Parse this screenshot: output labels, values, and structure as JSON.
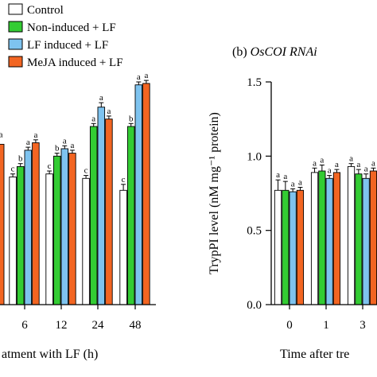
{
  "colors": {
    "control": "#ffffff",
    "non_induced": "#33cc33",
    "lf_induced": "#7ec3ef",
    "meja_induced": "#f26522",
    "axis": "#000000"
  },
  "legend": {
    "placement": "top-left",
    "items": [
      "Control",
      "Non-induced + LF",
      "LF induced + LF",
      "MeJA induced + LF"
    ]
  },
  "chart_data": [
    {
      "type": "bar",
      "panel": "left",
      "categories": [
        "6",
        "12",
        "24",
        "48"
      ],
      "xlabel": "atment with LF (h)",
      "ylim": [
        0,
        1.5
      ],
      "series": [
        {
          "name": "Control",
          "values": [
            0.86,
            0.88,
            0.85,
            0.77
          ],
          "errors": [
            0.02,
            0.02,
            0.02,
            0.04
          ],
          "letters": [
            "c",
            "c",
            "c",
            "c"
          ]
        },
        {
          "name": "Non-induced + LF",
          "values": [
            0.93,
            1.0,
            1.2,
            1.2
          ],
          "errors": [
            0.02,
            0.02,
            0.02,
            0.02
          ],
          "letters": [
            "b",
            "b",
            "a",
            "b"
          ]
        },
        {
          "name": "LF induced + LF",
          "values": [
            1.04,
            1.05,
            1.33,
            1.48
          ],
          "errors": [
            0.02,
            0.02,
            0.03,
            0.02
          ],
          "letters": [
            "a",
            "a",
            "a",
            "a"
          ]
        },
        {
          "name": "MeJA induced + LF",
          "values": [
            1.09,
            1.02,
            1.25,
            1.49
          ],
          "errors": [
            0.02,
            0.02,
            0.02,
            0.02
          ],
          "letters": [
            "a",
            "a",
            "a",
            "a"
          ]
        }
      ],
      "cutoff": {
        "category": "",
        "bar_value": 1.08,
        "letter": "a"
      }
    },
    {
      "type": "bar",
      "panel": "right",
      "title_prefix": "(b) ",
      "title_italic": "OsCOI RNAi",
      "categories": [
        "0",
        "1",
        "3"
      ],
      "xlabel": "Time after tre",
      "ylabel": "TrypPI level (nM mg⁻¹ protein)",
      "ylim": [
        0,
        1.5
      ],
      "yticks": [
        "0.0",
        "0.5",
        "1.0",
        "1.5"
      ],
      "series": [
        {
          "name": "Control",
          "values": [
            0.77,
            0.89,
            0.93
          ],
          "errors": [
            0.07,
            0.03,
            0.02
          ],
          "letters": [
            "a",
            "a",
            "a"
          ]
        },
        {
          "name": "Non-induced + LF",
          "values": [
            0.77,
            0.9,
            0.88
          ],
          "errors": [
            0.06,
            0.04,
            0.03
          ],
          "letters": [
            "a",
            "a",
            "a"
          ]
        },
        {
          "name": "LF induced + LF",
          "values": [
            0.76,
            0.85,
            0.85
          ],
          "errors": [
            0.02,
            0.02,
            0.03
          ],
          "letters": [
            "a",
            "a",
            "a"
          ]
        },
        {
          "name": "MeJA induced + LF",
          "values": [
            0.77,
            0.89,
            0.9
          ],
          "errors": [
            0.02,
            0.02,
            0.02
          ],
          "letters": [
            "a",
            "a",
            "a"
          ]
        }
      ]
    }
  ]
}
